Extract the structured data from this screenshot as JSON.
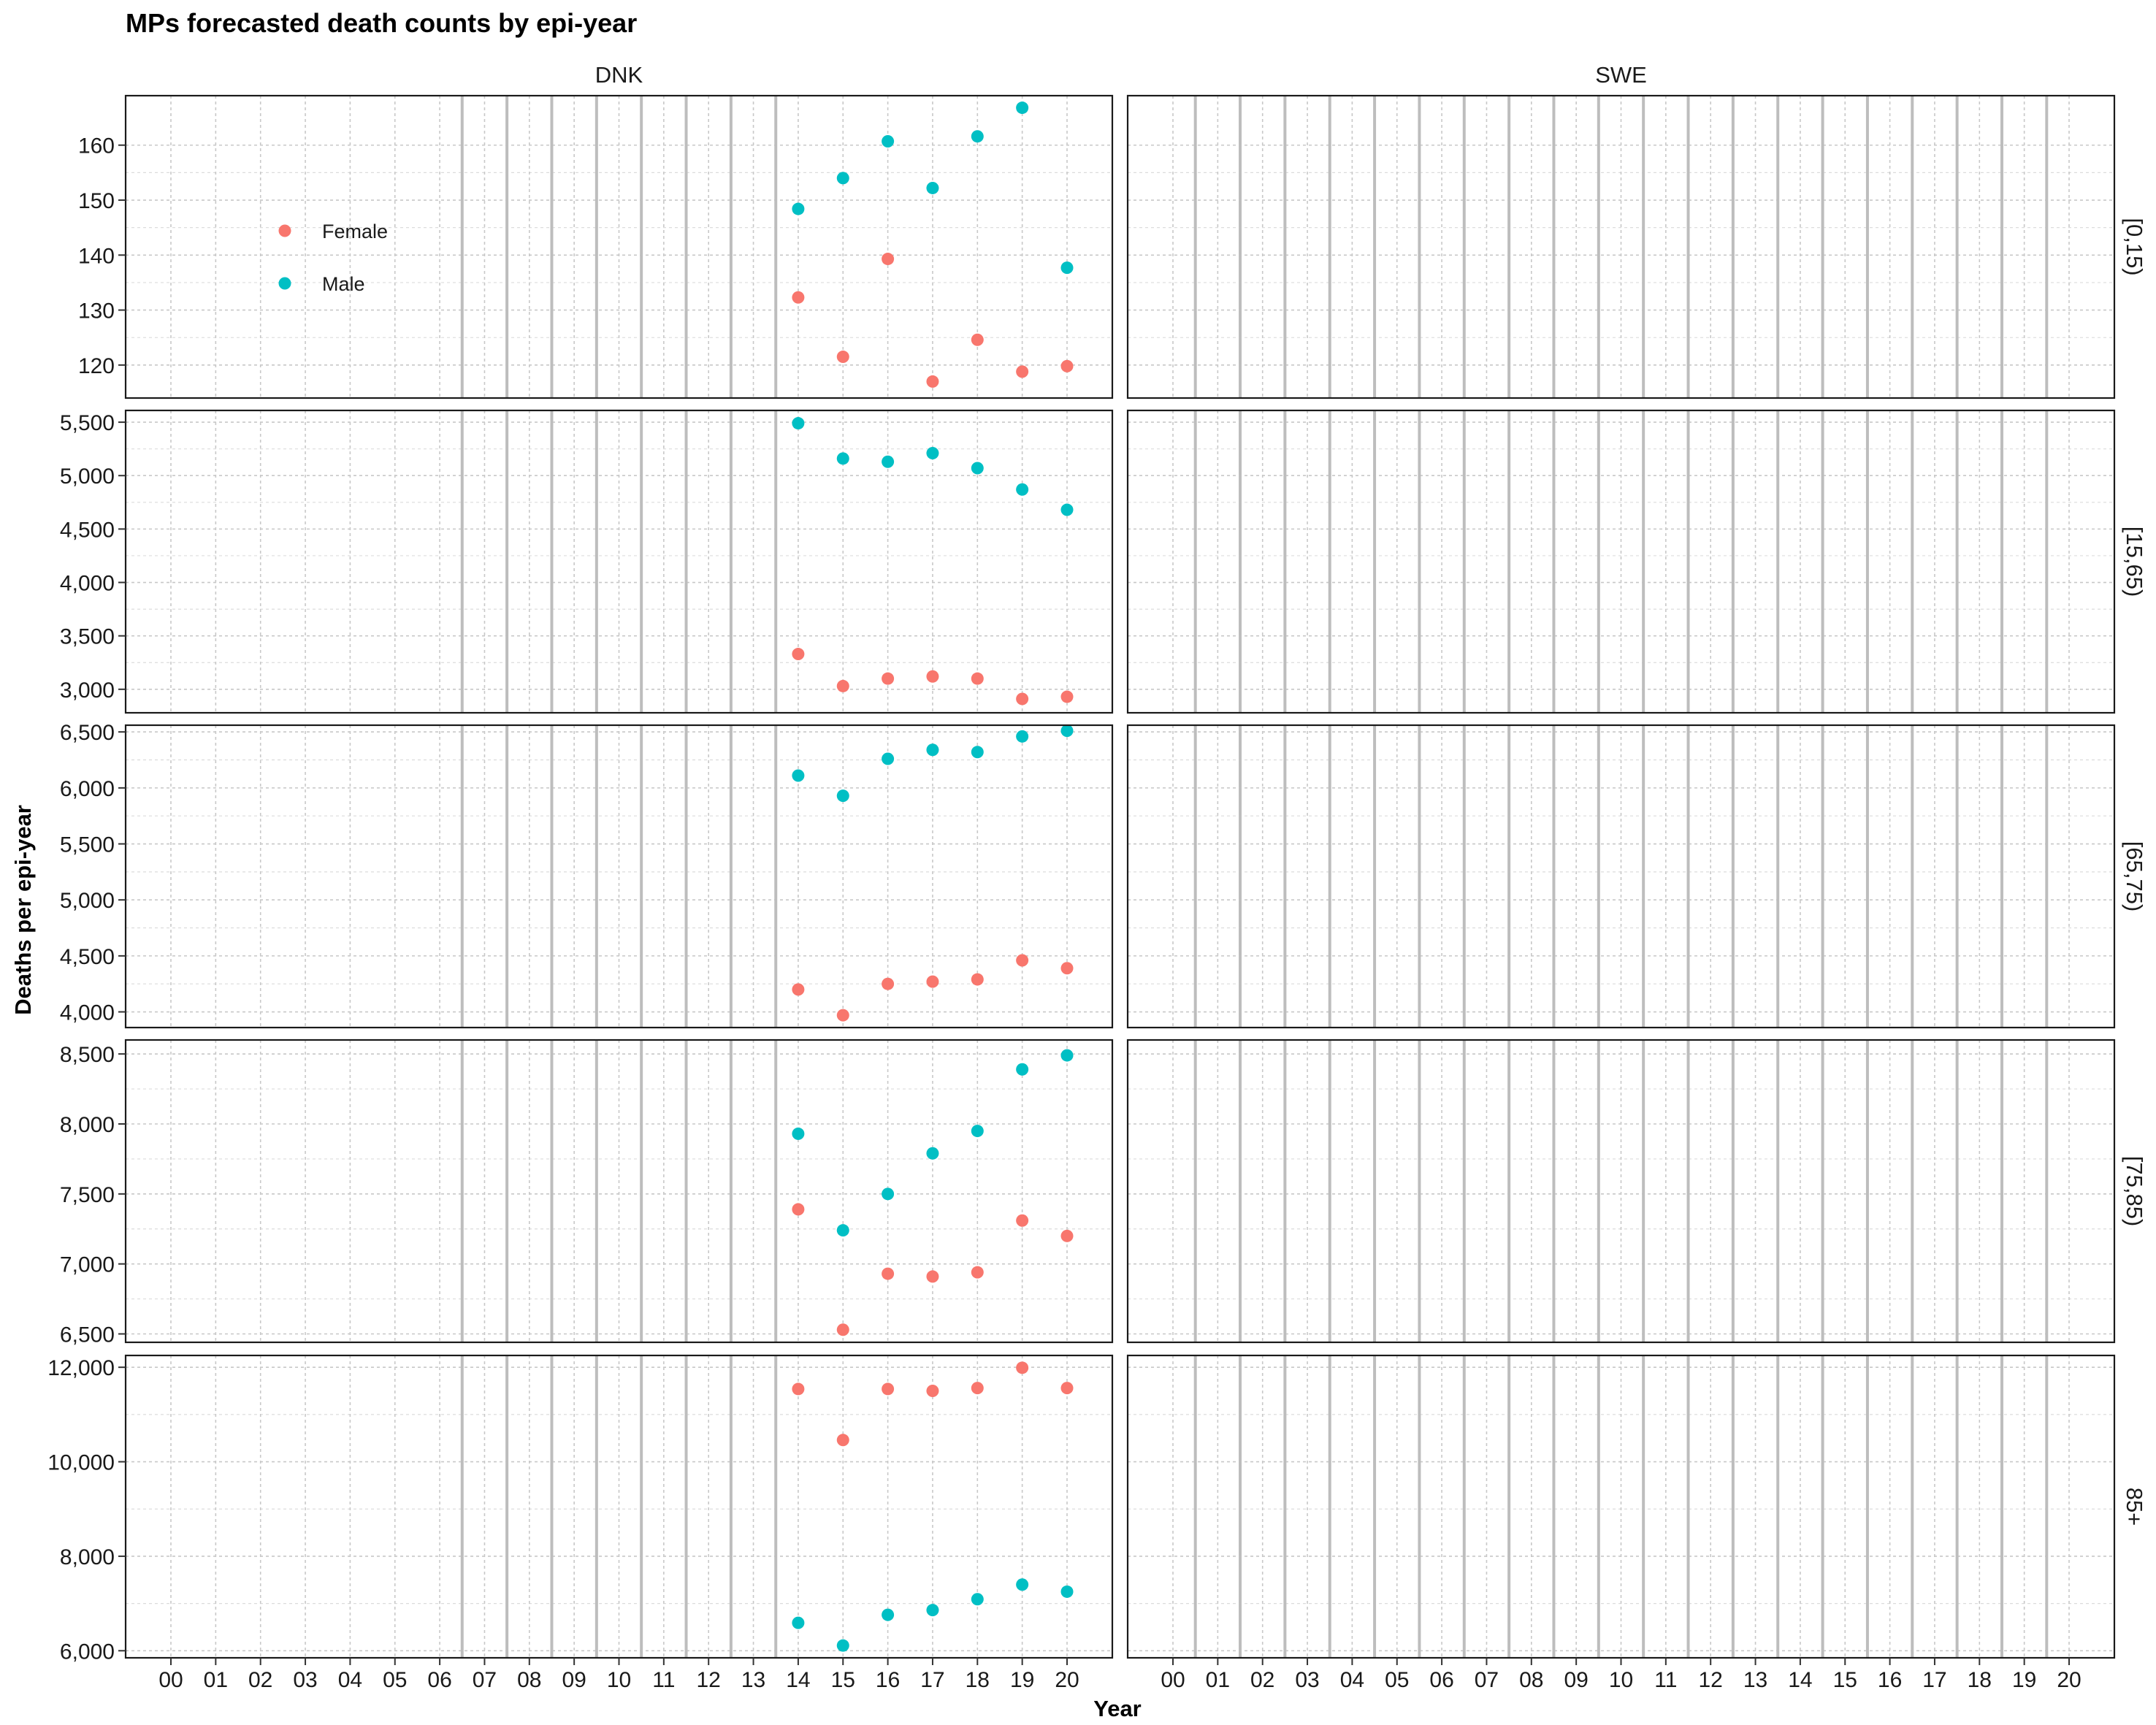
{
  "chart_data": {
    "type": "scatter",
    "title": "MPs forecasted death counts by epi-year",
    "xlabel": "Year",
    "ylabel": "Deaths per epi-year",
    "columns": [
      "DNK",
      "SWE"
    ],
    "x_ticks": [
      "00",
      "01",
      "02",
      "03",
      "04",
      "05",
      "06",
      "07",
      "08",
      "09",
      "10",
      "11",
      "12",
      "13",
      "14",
      "15",
      "16",
      "17",
      "18",
      "19",
      "20"
    ],
    "legend": {
      "placement": "inside top-left of first panel",
      "entries": [
        "Female",
        "Male"
      ]
    },
    "colors": {
      "Female": "#F8766D",
      "Male": "#00BFC4"
    },
    "grid": true,
    "rows": [
      {
        "label": "[0,15)",
        "ylim": [
          114,
          169
        ],
        "y_ticks": [
          120,
          130,
          140,
          150,
          160
        ],
        "y_tick_labels": [
          "120",
          "130",
          "140",
          "150",
          "160"
        ],
        "DNK": {
          "x": [
            14,
            15,
            16,
            17,
            18,
            19,
            20
          ],
          "series": [
            {
              "name": "Female",
              "values": [
                132.3,
                121.5,
                139.3,
                117.0,
                124.6,
                118.8,
                119.8
              ]
            },
            {
              "name": "Male",
              "values": [
                148.4,
                154.0,
                160.7,
                152.2,
                161.6,
                166.8,
                137.7
              ]
            }
          ]
        },
        "SWE": {
          "x": [],
          "series": []
        }
      },
      {
        "label": "[15,65)",
        "ylim": [
          2780,
          5610
        ],
        "y_ticks": [
          3000,
          3500,
          4000,
          4500,
          5000,
          5500
        ],
        "y_tick_labels": [
          "3,000",
          "3,500",
          "4,000",
          "4,500",
          "5,000",
          "5,500"
        ],
        "DNK": {
          "x": [
            14,
            15,
            16,
            17,
            18,
            19,
            20
          ],
          "series": [
            {
              "name": "Female",
              "values": [
                3330,
                3030,
                3100,
                3120,
                3100,
                2910,
                2930
              ]
            },
            {
              "name": "Male",
              "values": [
                5490,
                5160,
                5130,
                5210,
                5070,
                4870,
                4680
              ]
            }
          ]
        },
        "SWE": {
          "x": [],
          "series": []
        }
      },
      {
        "label": "[65,75)",
        "ylim": [
          3860,
          6560
        ],
        "y_ticks": [
          4000,
          4500,
          5000,
          5500,
          6000,
          6500
        ],
        "y_tick_labels": [
          "4,000",
          "4,500",
          "5,000",
          "5,500",
          "6,000",
          "6,500"
        ],
        "DNK": {
          "x": [
            14,
            15,
            16,
            17,
            18,
            19,
            20
          ],
          "series": [
            {
              "name": "Female",
              "values": [
                4200,
                3970,
                4250,
                4270,
                4290,
                4460,
                4390
              ]
            },
            {
              "name": "Male",
              "values": [
                6110,
                5930,
                6260,
                6340,
                6320,
                6460,
                6510
              ]
            }
          ]
        },
        "SWE": {
          "x": [],
          "series": []
        }
      },
      {
        "label": "[75,85)",
        "ylim": [
          6440,
          8600
        ],
        "y_ticks": [
          6500,
          7000,
          7500,
          8000,
          8500
        ],
        "y_tick_labels": [
          "6,500",
          "7,000",
          "7,500",
          "8,000",
          "8,500"
        ],
        "DNK": {
          "x": [
            14,
            15,
            16,
            17,
            18,
            19,
            20
          ],
          "series": [
            {
              "name": "Female",
              "values": [
                7390,
                6530,
                6930,
                6910,
                6940,
                7310,
                7200
              ]
            },
            {
              "name": "Male",
              "values": [
                7930,
                7240,
                7500,
                7790,
                7950,
                8390,
                8490
              ]
            }
          ]
        },
        "SWE": {
          "x": [],
          "series": []
        }
      },
      {
        "label": "85+",
        "ylim": [
          5850,
          12250
        ],
        "y_ticks": [
          6000,
          8000,
          10000,
          12000
        ],
        "y_tick_labels": [
          "6,000",
          "8,000",
          "10,000",
          "12,000"
        ],
        "DNK": {
          "x": [
            14,
            15,
            16,
            17,
            18,
            19,
            20
          ],
          "series": [
            {
              "name": "Female",
              "values": [
                11540,
                10460,
                11540,
                11500,
                11560,
                11990,
                11560
              ]
            },
            {
              "name": "Male",
              "values": [
                6590,
                6110,
                6760,
                6860,
                7090,
                7400,
                7250
              ]
            }
          ]
        },
        "SWE": {
          "x": [],
          "series": []
        }
      }
    ]
  }
}
